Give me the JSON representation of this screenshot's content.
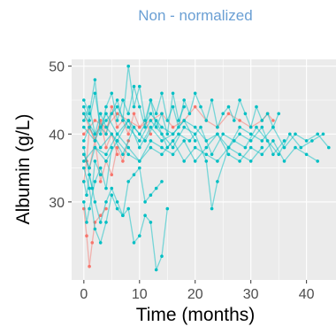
{
  "chart_data": {
    "type": "line",
    "title": "Non - normalized",
    "xlabel": "Time (months)",
    "ylabel": "Albumin (g/L)",
    "xlim": [
      -2.2,
      45.3
    ],
    "ylim": [
      18.5,
      51
    ],
    "x_ticks": [
      "0",
      "10",
      "20",
      "30",
      "40"
    ],
    "x_tick_values": [
      0,
      10,
      20,
      30,
      40
    ],
    "y_ticks": [
      "30",
      "40",
      "50"
    ],
    "y_tick_values": [
      30,
      40,
      50
    ],
    "grid": true,
    "legend": "none",
    "colors": {
      "red": "#f8766d",
      "teal": "#00bfc4",
      "panel": "#ebebeb",
      "title": "#6a9fd4"
    },
    "series": [
      {
        "color": "red",
        "x": [
          0,
          0.5,
          1,
          1.5,
          2,
          3,
          4
        ],
        "y": [
          29,
          25,
          20.5,
          24,
          27,
          28,
          29
        ]
      },
      {
        "color": "red",
        "x": [
          0,
          0.5,
          1,
          2,
          3,
          4,
          5,
          6
        ],
        "y": [
          33,
          36,
          41,
          39,
          42,
          38,
          40,
          37
        ]
      },
      {
        "color": "red",
        "x": [
          0,
          1,
          2,
          3,
          4,
          5,
          6,
          7,
          8,
          9,
          10,
          11,
          12
        ],
        "y": [
          43,
          41,
          39,
          42,
          40,
          44,
          41,
          42,
          40,
          43,
          41,
          42,
          40
        ]
      },
      {
        "color": "red",
        "x": [
          0,
          2,
          4,
          6,
          8,
          10,
          12,
          14,
          16,
          18,
          20,
          22,
          24,
          26,
          28,
          30,
          32,
          33,
          34
        ],
        "y": [
          40,
          42,
          41,
          43,
          42,
          41,
          42,
          43,
          41,
          42,
          44,
          42,
          41,
          43,
          42,
          41,
          42,
          43,
          42
        ]
      },
      {
        "color": "red",
        "x": [
          0,
          1,
          2,
          3,
          4,
          5,
          6,
          7,
          8
        ],
        "y": [
          37,
          35,
          39,
          33,
          36,
          34,
          38,
          36,
          39
        ]
      },
      {
        "color": "teal",
        "x": [
          0,
          0.5,
          1,
          2,
          3,
          4,
          5
        ],
        "y": [
          30,
          27,
          29,
          33,
          35,
          32,
          38
        ]
      },
      {
        "color": "teal",
        "x": [
          0,
          1,
          2,
          3,
          4,
          5,
          6,
          7,
          8,
          9,
          10,
          11,
          12,
          13,
          14,
          15
        ],
        "y": [
          35,
          32,
          26,
          24,
          27,
          31,
          29,
          28,
          29,
          24,
          25,
          28,
          27,
          20,
          22,
          29
        ]
      },
      {
        "color": "teal",
        "x": [
          0,
          1,
          2,
          3,
          4,
          5,
          6,
          7,
          8,
          9,
          10,
          11,
          12,
          13,
          14
        ],
        "y": [
          38,
          34,
          30,
          27,
          30,
          32,
          30,
          28,
          33,
          34,
          35,
          30,
          31,
          32,
          33
        ]
      },
      {
        "color": "teal",
        "x": [
          0,
          1,
          2,
          3,
          4,
          5,
          6,
          7,
          8,
          9,
          10,
          11,
          12,
          13,
          14,
          15,
          16,
          17,
          18
        ],
        "y": [
          44,
          42,
          46,
          41,
          40,
          43,
          45,
          42,
          50,
          44,
          47,
          42,
          45,
          41,
          43,
          40,
          46,
          42,
          44
        ]
      },
      {
        "color": "teal",
        "x": [
          0,
          2,
          4,
          6,
          8,
          10,
          12,
          14,
          16,
          18,
          20,
          22,
          24,
          26,
          28,
          30,
          32,
          34,
          36,
          38,
          40,
          42,
          44
        ],
        "y": [
          41,
          39,
          43,
          40,
          42,
          38,
          41,
          39,
          40,
          42,
          41,
          39,
          40,
          38,
          41,
          40,
          39,
          41,
          38,
          40,
          39,
          40,
          38
        ]
      },
      {
        "color": "teal",
        "x": [
          0,
          1,
          3,
          5,
          7,
          9,
          11,
          13,
          15,
          17,
          19,
          21,
          23,
          25,
          27,
          29,
          31,
          33,
          35,
          37,
          39,
          41,
          43
        ],
        "y": [
          39,
          41,
          38,
          40,
          37,
          41,
          39,
          42,
          38,
          40,
          39,
          41,
          37,
          40,
          39,
          38,
          41,
          39,
          37,
          40,
          38,
          39,
          40
        ]
      },
      {
        "color": "teal",
        "x": [
          0,
          2,
          4,
          6,
          8,
          10,
          12,
          14,
          16,
          18,
          20,
          22,
          23,
          24,
          26,
          28,
          30,
          32,
          34,
          36
        ],
        "y": [
          43,
          40,
          42,
          44,
          41,
          39,
          42,
          40,
          38,
          41,
          40,
          36,
          29,
          33,
          38,
          40,
          39,
          41,
          37,
          39
        ]
      },
      {
        "color": "teal",
        "x": [
          0,
          1,
          2,
          3,
          4,
          5,
          6,
          7,
          8,
          9,
          10,
          11,
          12,
          13,
          14,
          15,
          16,
          17,
          18,
          19,
          20,
          21,
          22,
          23,
          24,
          25,
          26,
          27,
          28,
          29,
          30,
          31,
          32,
          33,
          34,
          35
        ],
        "y": [
          45,
          43,
          48,
          40,
          44,
          46,
          42,
          45,
          43,
          47,
          44,
          41,
          45,
          43,
          46,
          42,
          44,
          41,
          45,
          43,
          46,
          44,
          42,
          45,
          41,
          43,
          44,
          42,
          45,
          43,
          41,
          44,
          42,
          43,
          41,
          43
        ]
      },
      {
        "color": "teal",
        "x": [
          0,
          1,
          2,
          4,
          6,
          8,
          10,
          12,
          14,
          16,
          18,
          20,
          22,
          24,
          26,
          28,
          30,
          32
        ],
        "y": [
          37,
          35,
          38,
          36,
          39,
          37,
          36,
          38,
          37,
          39,
          36,
          38,
          37,
          36,
          38,
          37,
          36,
          38
        ]
      },
      {
        "color": "teal",
        "x": [
          0,
          0.5,
          1,
          1.5,
          2,
          3
        ],
        "y": [
          33,
          31,
          34,
          32,
          36,
          34
        ]
      },
      {
        "color": "teal",
        "x": [
          0,
          1,
          2,
          3,
          4,
          6,
          8,
          10,
          12,
          14,
          16,
          18,
          20
        ],
        "y": [
          42,
          44,
          40,
          43,
          41,
          39,
          42,
          40,
          43,
          41,
          40,
          42,
          39
        ]
      },
      {
        "color": "teal",
        "x": [
          0,
          2,
          4,
          6,
          8,
          10,
          12,
          14,
          16,
          18,
          20,
          22,
          24,
          26,
          28,
          30,
          32,
          34,
          36,
          38,
          40,
          42
        ],
        "y": [
          36,
          38,
          37,
          40,
          38,
          36,
          39,
          38,
          37,
          39,
          36,
          38,
          40,
          37,
          36,
          38,
          37,
          39,
          36,
          38,
          37,
          36
        ]
      }
    ]
  }
}
